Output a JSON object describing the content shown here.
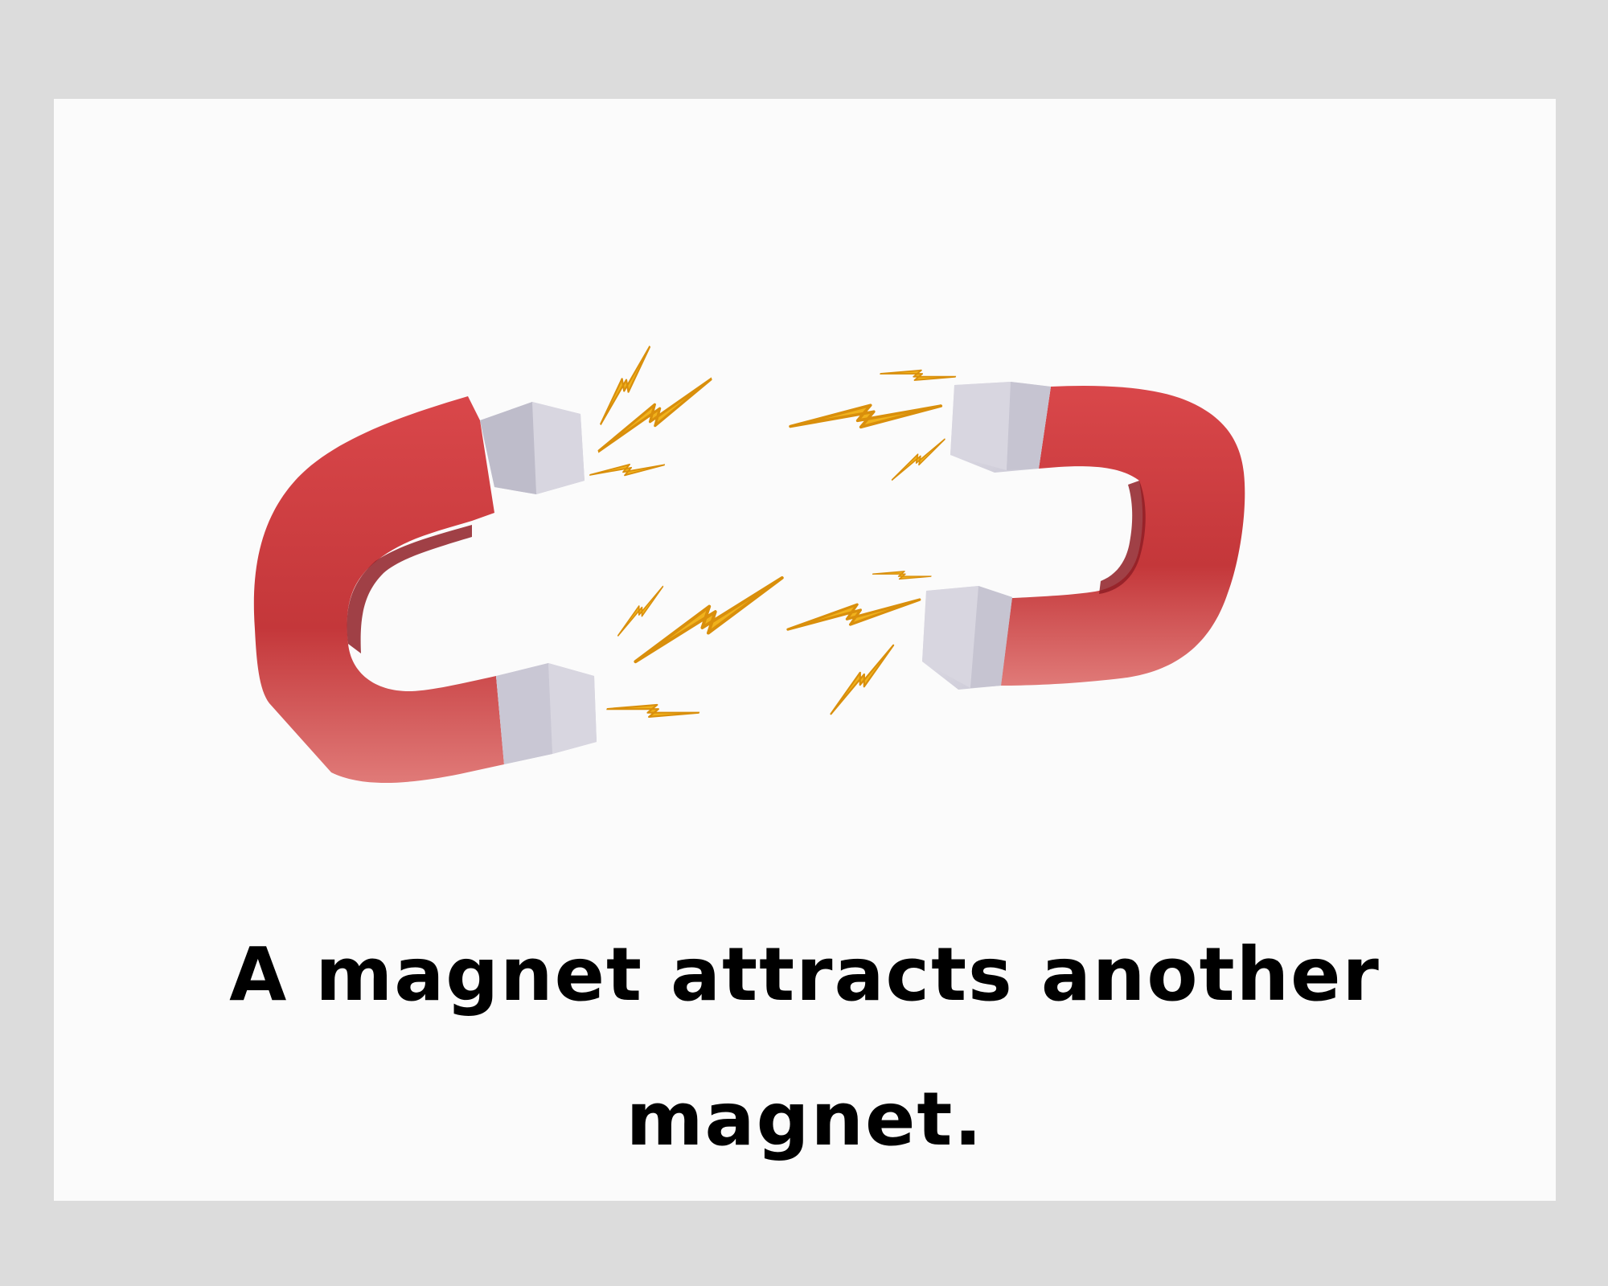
{
  "caption": "A magnet attracts another magnet.",
  "illustration": {
    "icons": [
      "horseshoe-magnet-icon",
      "horseshoe-magnet-icon",
      "lightning-bolt-icon"
    ],
    "colors": {
      "magnet_red": "#c9393b",
      "magnet_red_dark": "#8f1f26",
      "pole_silver": "#d5d3dd",
      "pole_shadow": "#a9a7b6",
      "spark_gold": "#f0b21c",
      "spark_orange": "#d98f0c",
      "page_background": "#dcdcdc",
      "card_background": "#fbfbfb"
    }
  }
}
